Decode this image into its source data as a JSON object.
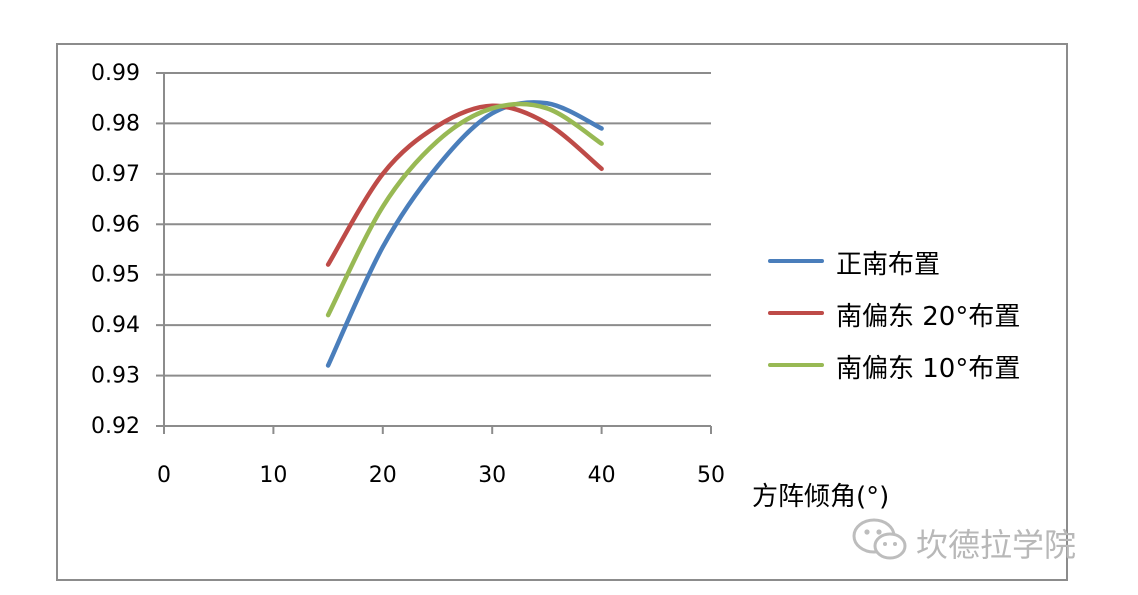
{
  "chart_data": {
    "type": "line",
    "xlabel": "方阵倾角(°)",
    "ylabel": "",
    "xlim": [
      0,
      50
    ],
    "ylim": [
      0.92,
      0.99
    ],
    "x_ticks": [
      "0",
      "10",
      "20",
      "30",
      "40",
      "50"
    ],
    "y_ticks": [
      "0.99",
      "0.98",
      "0.97",
      "0.96",
      "0.95",
      "0.94",
      "0.93",
      "0.92"
    ],
    "grid": "horizontal",
    "legend_position": "right",
    "series": [
      {
        "name": "正南布置",
        "color": "#4a7ebb",
        "x": [
          15,
          20,
          25,
          30,
          35,
          40
        ],
        "y": [
          0.932,
          0.9555,
          0.9715,
          0.982,
          0.984,
          0.979
        ]
      },
      {
        "name": "南偏东 20°布置",
        "color": "#be4b48",
        "x": [
          15,
          20,
          25,
          30,
          35,
          40
        ],
        "y": [
          0.952,
          0.97,
          0.9795,
          0.9835,
          0.98,
          0.971
        ]
      },
      {
        "name": "南偏东 10°布置",
        "color": "#98b954",
        "x": [
          15,
          20,
          25,
          30,
          35,
          40
        ],
        "y": [
          0.942,
          0.9635,
          0.9765,
          0.983,
          0.983,
          0.976
        ]
      }
    ]
  },
  "watermark": {
    "text": "坎德拉学院",
    "icon": "wechat-icon"
  }
}
